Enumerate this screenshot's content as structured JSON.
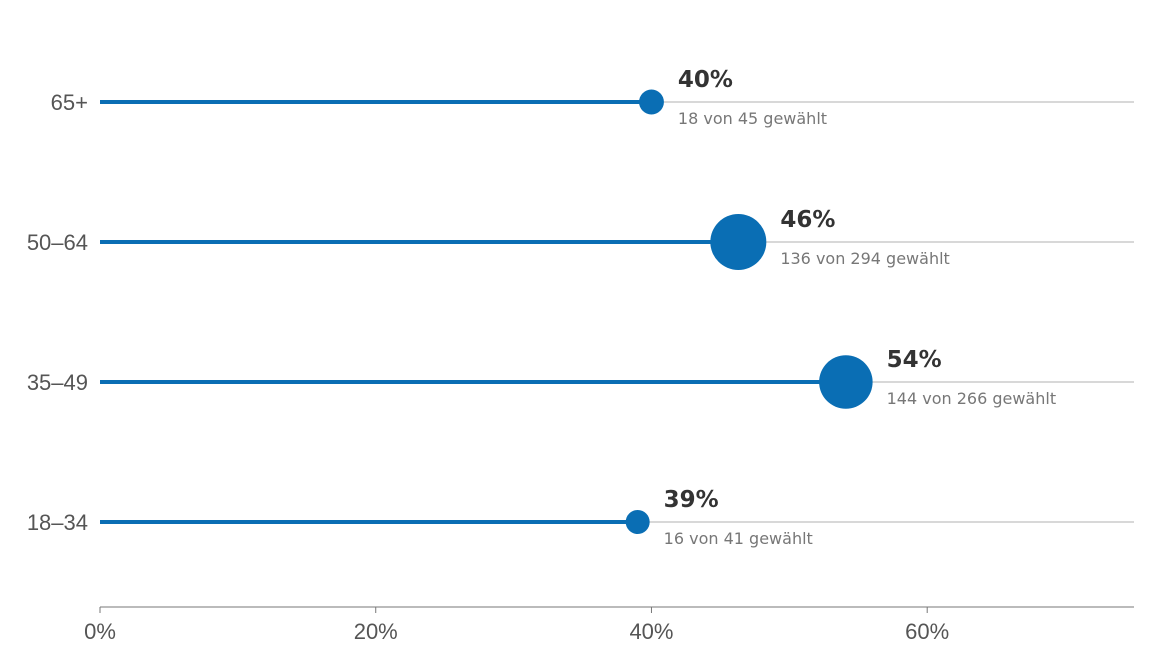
{
  "chart_data": {
    "type": "lollipop",
    "xlim": [
      0,
      75
    ],
    "x_ticks": [
      0,
      20,
      40,
      60
    ],
    "x_tick_labels": [
      "0%",
      "20%",
      "40%",
      "60%"
    ],
    "categories": [
      "65+",
      "50–64",
      "35–49",
      "18–34"
    ],
    "series": [
      {
        "values": [
          40,
          46.3,
          54.1,
          39
        ],
        "value_labels": [
          "40%",
          "46%",
          "54%",
          "39%"
        ],
        "details": [
          "18 von 45 gewählt",
          "136 von 294 gewählt",
          "144 von 266 gewählt",
          "16 von 41 gewählt"
        ],
        "counts": [
          18,
          136,
          144,
          16
        ],
        "totals": [
          45,
          294,
          266,
          41
        ]
      }
    ],
    "grid": "horizontal reference lines per category",
    "legend": "none"
  },
  "colors": {
    "accent": "#0a6eb4",
    "reference_line": "#b0b0b0",
    "axis": "#777777",
    "value_text": "#333333",
    "detail_text": "#777777",
    "category_text": "#555555"
  }
}
